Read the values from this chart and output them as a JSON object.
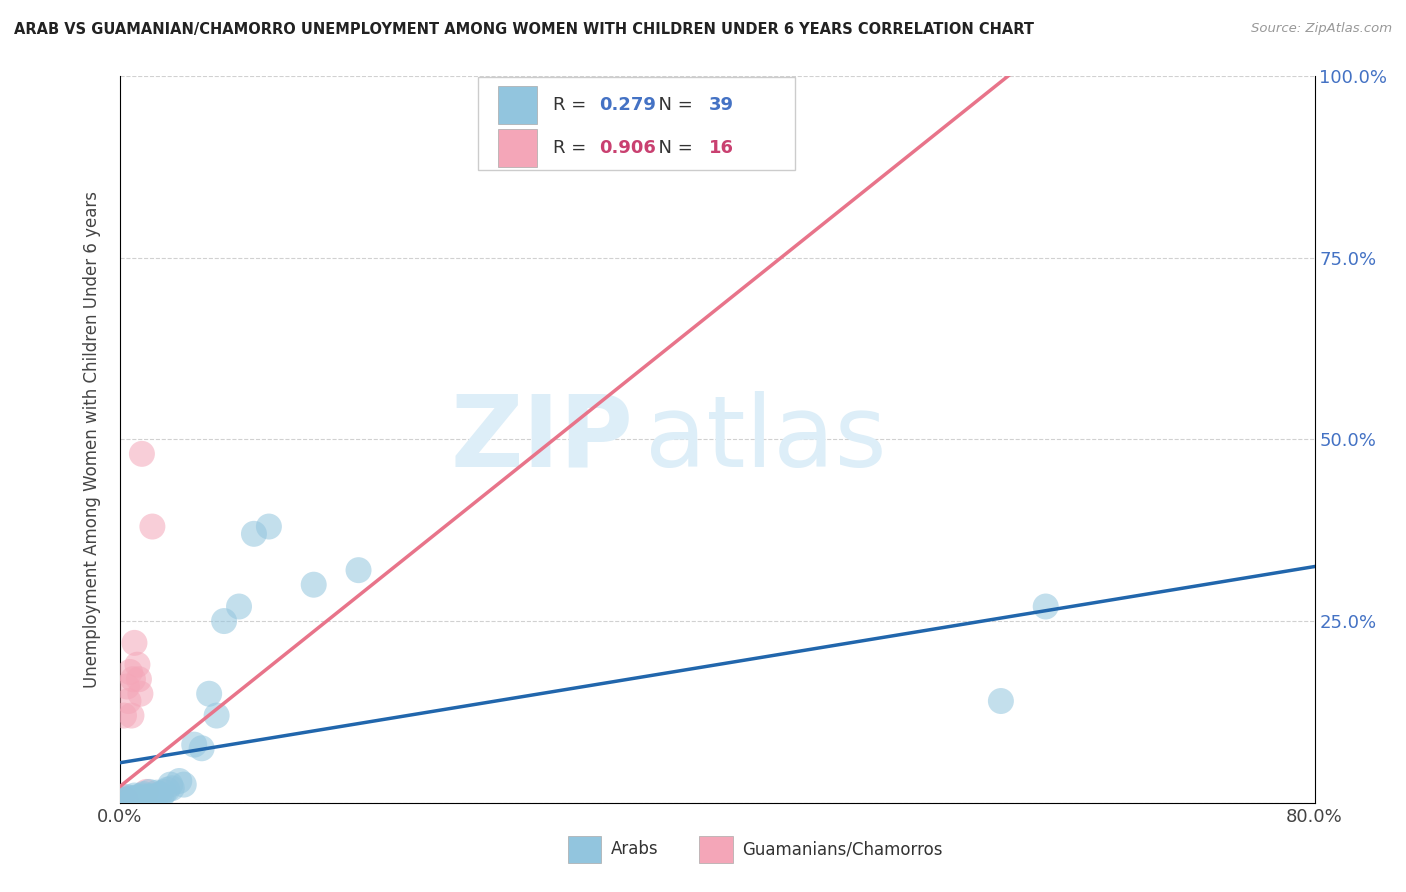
{
  "title": "ARAB VS GUAMANIAN/CHAMORRO UNEMPLOYMENT AMONG WOMEN WITH CHILDREN UNDER 6 YEARS CORRELATION CHART",
  "source": "Source: ZipAtlas.com",
  "ylabel": "Unemployment Among Women with Children Under 6 years",
  "xlim": [
    0,
    0.8
  ],
  "ylim": [
    0,
    1.0
  ],
  "arab_R": 0.279,
  "arab_N": 39,
  "guam_R": 0.906,
  "guam_N": 16,
  "arab_color": "#92c5de",
  "guam_color": "#f4a6b8",
  "arab_line_color": "#2166ac",
  "guam_line_color": "#e8748a",
  "watermark_zip": "ZIP",
  "watermark_atlas": "atlas",
  "watermark_color": "#ddeef8",
  "legend_arab": "Arabs",
  "legend_guam": "Guamanians/Chamorros",
  "arab_line_x0": 0.0,
  "arab_line_x1": 0.8,
  "arab_line_y0": 0.055,
  "arab_line_y1": 0.325,
  "guam_line_x0": 0.0,
  "guam_line_x1": 0.595,
  "guam_line_y0": 0.022,
  "guam_line_y1": 1.0,
  "arab_points_x": [
    0.0,
    0.003,
    0.005,
    0.007,
    0.008,
    0.01,
    0.01,
    0.012,
    0.013,
    0.015,
    0.015,
    0.016,
    0.018,
    0.019,
    0.02,
    0.02,
    0.022,
    0.025,
    0.025,
    0.027,
    0.028,
    0.03,
    0.032,
    0.034,
    0.035,
    0.04,
    0.043,
    0.05,
    0.055,
    0.06,
    0.065,
    0.07,
    0.08,
    0.09,
    0.1,
    0.13,
    0.16,
    0.59,
    0.62
  ],
  "arab_points_y": [
    0.005,
    0.003,
    0.008,
    0.006,
    0.004,
    0.01,
    0.007,
    0.005,
    0.008,
    0.01,
    0.006,
    0.012,
    0.008,
    0.005,
    0.009,
    0.015,
    0.007,
    0.01,
    0.014,
    0.012,
    0.008,
    0.015,
    0.018,
    0.025,
    0.02,
    0.03,
    0.025,
    0.08,
    0.075,
    0.15,
    0.12,
    0.25,
    0.27,
    0.37,
    0.38,
    0.3,
    0.32,
    0.14,
    0.27
  ],
  "guam_points_x": [
    0.0,
    0.002,
    0.003,
    0.004,
    0.005,
    0.006,
    0.007,
    0.008,
    0.009,
    0.01,
    0.012,
    0.013,
    0.014,
    0.015,
    0.018,
    0.022
  ],
  "guam_points_y": [
    0.005,
    0.008,
    0.12,
    0.005,
    0.16,
    0.14,
    0.18,
    0.12,
    0.17,
    0.22,
    0.19,
    0.17,
    0.15,
    0.48,
    0.015,
    0.38
  ]
}
